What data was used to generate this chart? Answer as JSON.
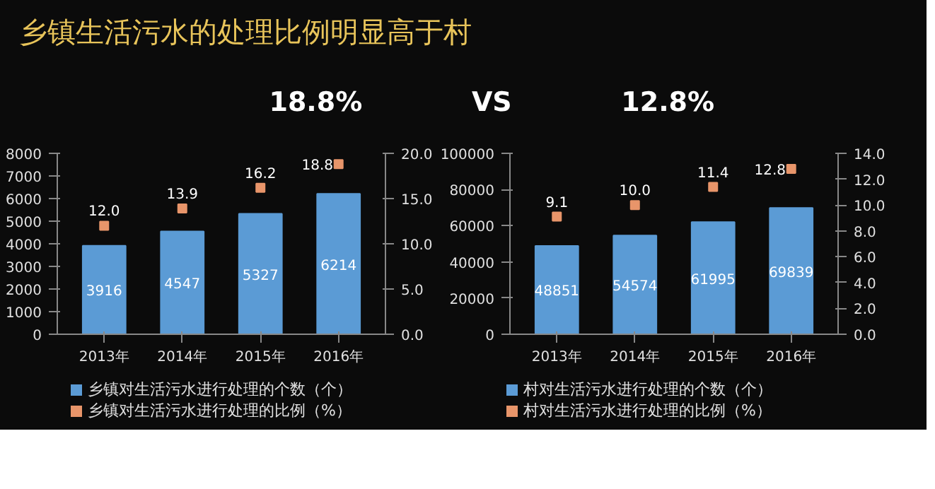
{
  "chart_data": [
    {
      "type": "other",
      "title": "乡镇生活污水的处理比例明显高于村",
      "annotations": [
        "18.8%",
        "VS",
        "12.8%"
      ]
    },
    {
      "type": "bar",
      "categories": [
        "2013年",
        "2014年",
        "2015年",
        "2016年"
      ],
      "series": [
        {
          "name": "乡镇对生活污水进行处理的个数（个）",
          "color": "#5b9bd5",
          "values": [
            3916,
            4547,
            5327,
            6214
          ]
        },
        {
          "name": "乡镇对生活污水进行处理的比例（%）",
          "type": "scatter",
          "axis": "y2",
          "color": "#e8956a",
          "values": [
            12.0,
            13.9,
            16.2,
            18.8
          ],
          "value_labels": [
            "12.0",
            "13.9",
            "16.2",
            "18.8"
          ]
        }
      ],
      "ylim": [
        0,
        8000
      ],
      "yticks": [
        0,
        1000,
        2000,
        3000,
        4000,
        5000,
        6000,
        7000,
        8000
      ],
      "y2lim": [
        0,
        20
      ],
      "y2ticks": [
        {
          "value": 0,
          "label": "0.0"
        },
        {
          "value": 5,
          "label": "5.0"
        },
        {
          "value": 10,
          "label": "10.0"
        },
        {
          "value": 15,
          "label": "15.0"
        },
        {
          "value": 20,
          "label": "20.0"
        }
      ],
      "data_labels": true,
      "marker": "square",
      "grid": false,
      "legend": "bottom"
    },
    {
      "type": "bar",
      "categories": [
        "2013年",
        "2014年",
        "2015年",
        "2016年"
      ],
      "series": [
        {
          "name": "村对生活污水进行处理的个数（个）",
          "color": "#5b9bd5",
          "values": [
            48851,
            54574,
            61995,
            69839
          ]
        },
        {
          "name": "村对生活污水进行处理的比例（%）",
          "type": "scatter",
          "axis": "y2",
          "color": "#e8956a",
          "values": [
            9.1,
            10.0,
            11.4,
            12.8
          ],
          "value_labels": [
            "9.1",
            "10.0",
            "11.4",
            "12.8"
          ]
        }
      ],
      "ylim": [
        0,
        100000
      ],
      "yticks": [
        0,
        20000,
        40000,
        60000,
        80000,
        100000
      ],
      "y2lim": [
        0,
        14
      ],
      "y2ticks": [
        {
          "value": 0,
          "label": "0.0"
        },
        {
          "value": 2,
          "label": "2.0"
        },
        {
          "value": 4,
          "label": "4.0"
        },
        {
          "value": 6,
          "label": "6.0"
        },
        {
          "value": 8,
          "label": "8.0"
        },
        {
          "value": 10,
          "label": "10.0"
        },
        {
          "value": 12,
          "label": "12.0"
        },
        {
          "value": 14,
          "label": "14.0"
        }
      ],
      "data_labels": true,
      "marker": "square",
      "grid": false,
      "legend": "bottom"
    }
  ]
}
